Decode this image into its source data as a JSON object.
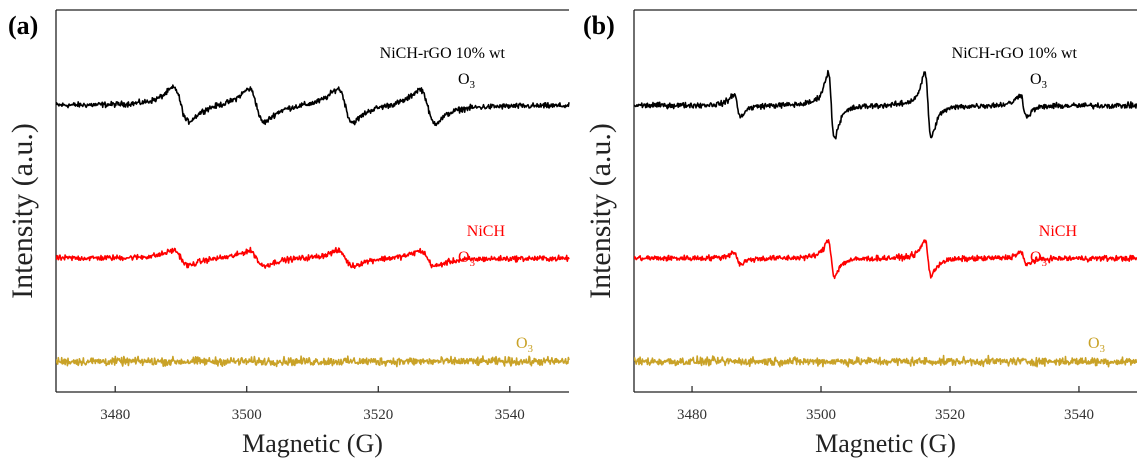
{
  "chart_data": [
    {
      "type": "line",
      "panel": "(a)",
      "xlabel": "Magnetic (G)",
      "ylabel": "Intensity (a.u.)",
      "xlim": [
        3471,
        3549
      ],
      "xticks": [
        "3480",
        "3500",
        "3520",
        "3540"
      ],
      "xtick_values": [
        3480,
        3500,
        3520,
        3540
      ],
      "yticks_shown": false,
      "grid": false,
      "legend": "inline labels at right",
      "series": [
        {
          "label_lines": [
            "NiCH-rGO 10% wt",
            "O"
          ],
          "color": "#000000",
          "baseline": 0.75,
          "lines": [
            3487.6,
            3489.2,
            3490.8,
            3492.2,
            3498.0,
            3499.6,
            3502.0,
            3505.2,
            3511.2,
            3512.8,
            3515.6,
            3518.6,
            3524.5,
            3526.0,
            3527.6,
            3529.2
          ],
          "amplitude": 1.0
        },
        {
          "label_lines": [
            "NiCH",
            "O"
          ],
          "color": "#ff0000",
          "baseline": 0.35,
          "lines": [
            3487.6,
            3489.2,
            3490.8,
            3492.2,
            3498.0,
            3499.6,
            3502.0,
            3505.2,
            3511.2,
            3512.8,
            3515.6,
            3518.6,
            3524.5,
            3526.0,
            3527.6,
            3529.2
          ],
          "amplitude": 0.45
        },
        {
          "label_lines": [
            "O"
          ],
          "color": "#c9a227",
          "baseline": 0.08,
          "lines": [],
          "amplitude": 0
        }
      ]
    },
    {
      "type": "line",
      "panel": "(b)",
      "xlabel": "Magnetic (G)",
      "ylabel": "Intensity (a.u.)",
      "xlim": [
        3471,
        3549
      ],
      "xticks": [
        "3480",
        "3500",
        "3520",
        "3540"
      ],
      "xtick_values": [
        3480,
        3500,
        3520,
        3540
      ],
      "yticks_shown": false,
      "grid": false,
      "legend": "inline labels at right",
      "series": [
        {
          "label_lines": [
            "NiCH-rGO 10% wt",
            "O"
          ],
          "color": "#000000",
          "baseline": 0.75,
          "lines": [
            3487.0,
            3501.6,
            3516.6,
            3531.4
          ],
          "weights": [
            0.35,
            1.0,
            1.0,
            0.35
          ],
          "amplitude": 1.0
        },
        {
          "label_lines": [
            "NiCH",
            "O"
          ],
          "color": "#ff0000",
          "baseline": 0.35,
          "lines": [
            3487.0,
            3501.6,
            3516.6,
            3531.4
          ],
          "weights": [
            0.35,
            1.0,
            1.0,
            0.35
          ],
          "amplitude": 0.55
        },
        {
          "label_lines": [
            "O"
          ],
          "color": "#c9a227",
          "baseline": 0.08,
          "lines": [],
          "amplitude": 0
        }
      ]
    }
  ]
}
